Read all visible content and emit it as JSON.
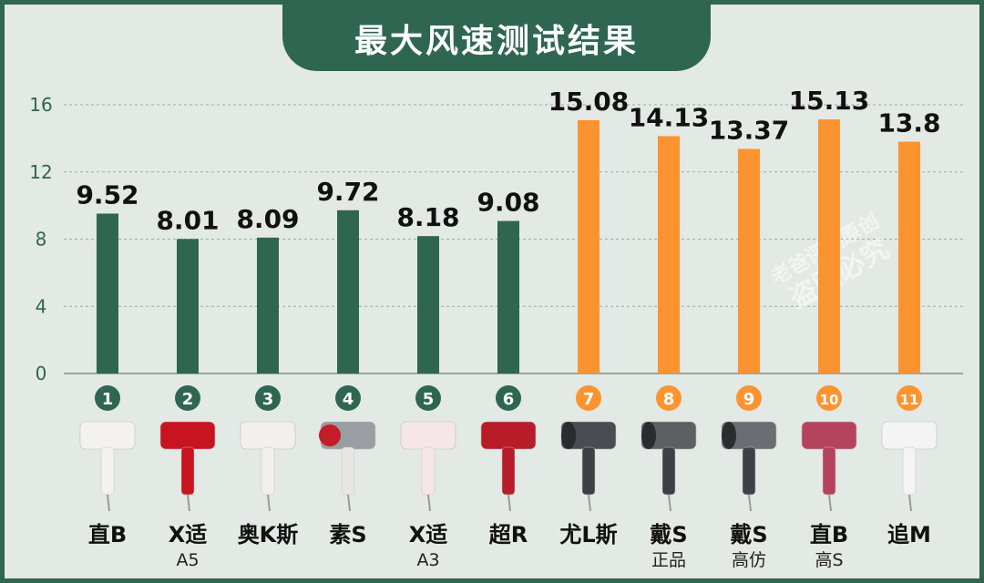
{
  "colors": {
    "frame": "#2e6652",
    "background": "#e3e9e4",
    "bar_green": "#2e6652",
    "bar_orange": "#fb9430",
    "text_dark": "#111111",
    "axis_text": "#2e6652"
  },
  "chart_data": {
    "type": "bar",
    "title": "最大风速测试结果",
    "xlabel": "",
    "ylabel": "",
    "ylim": [
      0,
      16
    ],
    "yticks": [
      "0",
      "4",
      "8",
      "12",
      "16"
    ],
    "grid": true,
    "legend": "none",
    "categories": [
      {
        "num": "1",
        "name": "直B",
        "sub": "",
        "group": "green"
      },
      {
        "num": "2",
        "name": "X适",
        "sub": "A5",
        "group": "green"
      },
      {
        "num": "3",
        "name": "奥K斯",
        "sub": "",
        "group": "green"
      },
      {
        "num": "4",
        "name": "素S",
        "sub": "",
        "group": "green"
      },
      {
        "num": "5",
        "name": "X适",
        "sub": "A3",
        "group": "green"
      },
      {
        "num": "6",
        "name": "超R",
        "sub": "",
        "group": "green"
      },
      {
        "num": "7",
        "name": "尤L斯",
        "sub": "",
        "group": "orange"
      },
      {
        "num": "8",
        "name": "戴S",
        "sub": "正品",
        "group": "orange"
      },
      {
        "num": "9",
        "name": "戴S",
        "sub": "高仿",
        "group": "orange"
      },
      {
        "num": "10",
        "name": "直B",
        "sub": "高S",
        "group": "orange"
      },
      {
        "num": "11",
        "name": "追M",
        "sub": "",
        "group": "orange"
      }
    ],
    "values": [
      9.52,
      8.01,
      8.09,
      9.72,
      8.18,
      9.08,
      15.08,
      14.13,
      13.37,
      15.13,
      13.8
    ],
    "value_labels": [
      "9.52",
      "8.01",
      "8.09",
      "9.72",
      "8.18",
      "9.08",
      "15.08",
      "14.13",
      "13.37",
      "15.13",
      "13.8"
    ]
  },
  "dryers": [
    {
      "body": "#f4f2f0",
      "style": "white"
    },
    {
      "body": "#c8141e",
      "style": "red"
    },
    {
      "body": "#f2efec",
      "style": "white"
    },
    {
      "body": "#9a9ea3",
      "style": "silver"
    },
    {
      "body": "#f6e6ea",
      "style": "pink"
    },
    {
      "body": "#b81c28",
      "style": "red"
    },
    {
      "body": "#4a4c52",
      "style": "dark"
    },
    {
      "body": "#5e5f63",
      "style": "dark"
    },
    {
      "body": "#6b6d72",
      "style": "dark"
    },
    {
      "body": "#b5435e",
      "style": "rose"
    },
    {
      "body": "#f4f4f4",
      "style": "white"
    }
  ],
  "watermark": "老爸评测原创 盗图必究"
}
